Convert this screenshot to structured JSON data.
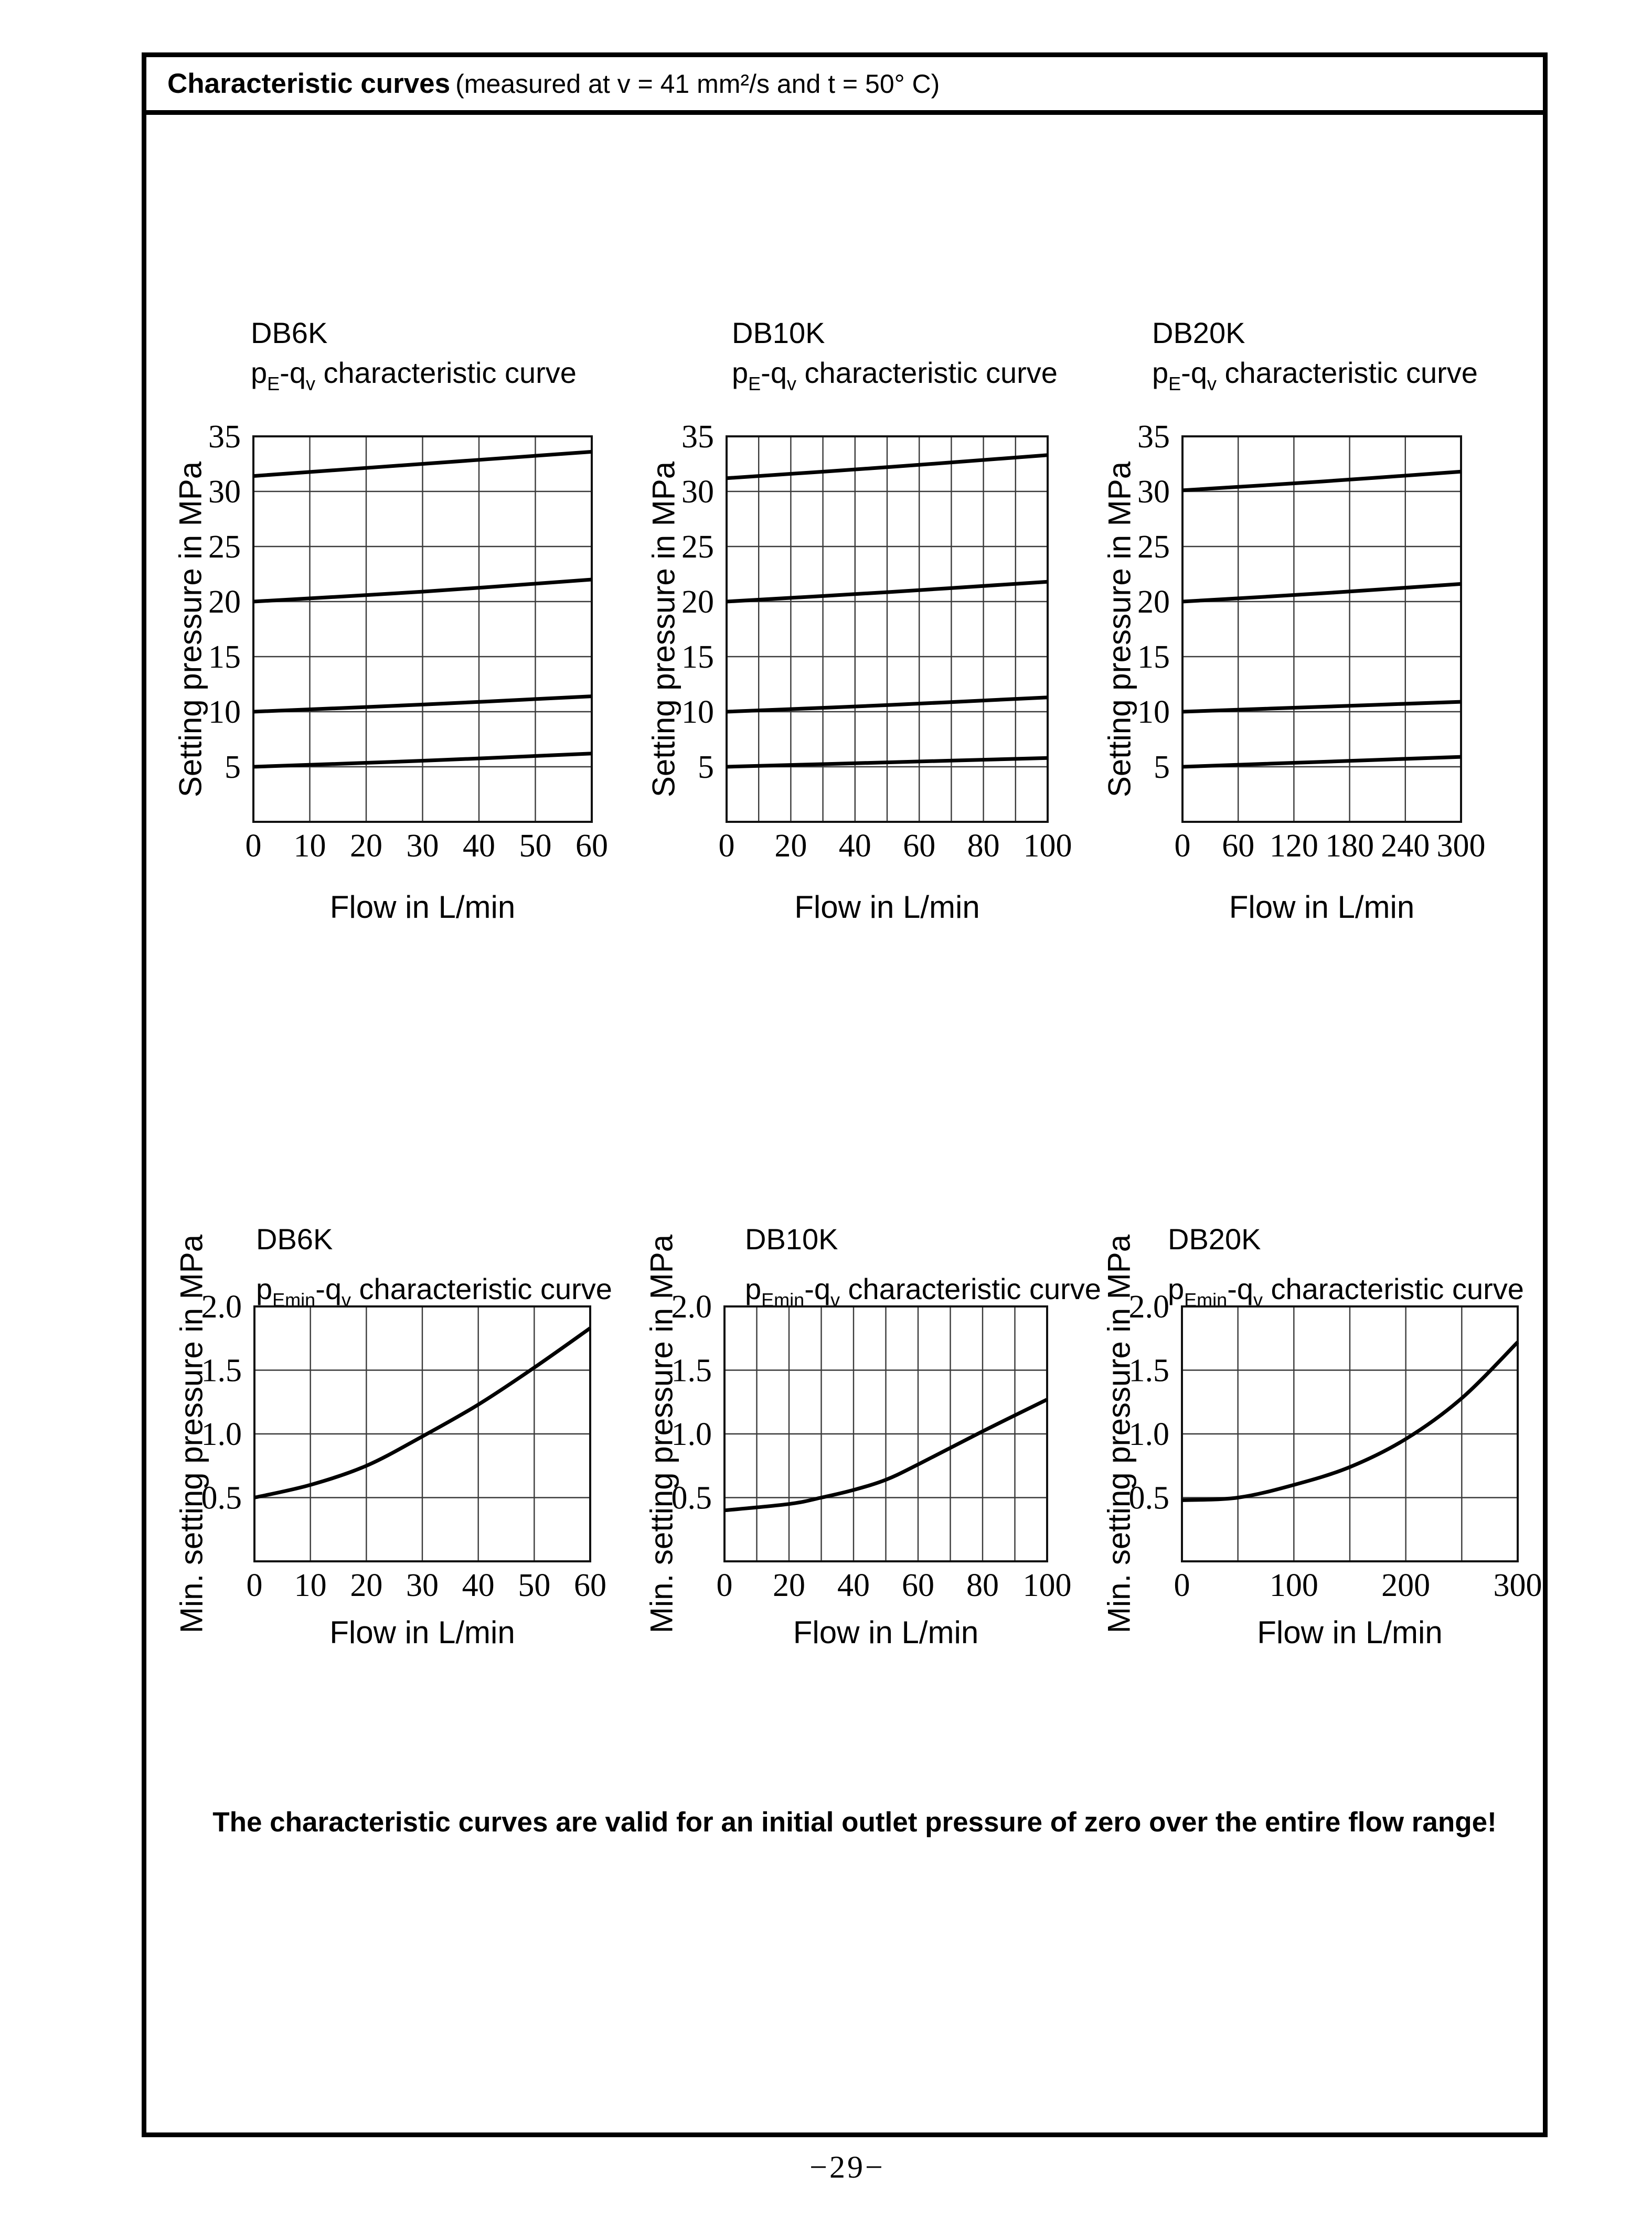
{
  "page": {
    "header_bold": "Characteristic curves",
    "header_rest": "(measured at v = 41 mm²/s and t = 50° C)",
    "footer_note": "The characteristic curves are valid for an initial outlet pressure of zero over the entire flow range!",
    "page_number": "−29−"
  },
  "chart_data": [
    {
      "type": "line",
      "model": "DB6K",
      "subtitle": [
        {
          "t": "p"
        },
        {
          "t": "E",
          "sub": true
        },
        {
          "t": "-q"
        },
        {
          "t": "v",
          "sub": true
        },
        {
          "t": " characteristic curve"
        }
      ],
      "xlabel": "Flow in L/min",
      "ylabel": "Setting pressure in MPa",
      "xlim": [
        0,
        60
      ],
      "ylim": [
        0,
        35
      ],
      "xgrid_step": 10,
      "ygrid": [
        5,
        10,
        15,
        20,
        25,
        30
      ],
      "xticks": [
        {
          "v": 0,
          "label": "0"
        },
        {
          "v": 10,
          "label": "10"
        },
        {
          "v": 20,
          "label": "20"
        },
        {
          "v": 30,
          "label": "30"
        },
        {
          "v": 40,
          "label": "40"
        },
        {
          "v": 50,
          "label": "50"
        },
        {
          "v": 60,
          "label": "60"
        }
      ],
      "yticks": [
        {
          "v": 35,
          "label": "35"
        },
        {
          "v": 30,
          "label": "30"
        },
        {
          "v": 25,
          "label": "25"
        },
        {
          "v": 20,
          "label": "20"
        },
        {
          "v": 15,
          "label": "15"
        },
        {
          "v": 10,
          "label": "10"
        },
        {
          "v": 5,
          "label": "5"
        }
      ],
      "series": [
        {
          "points": [
            [
              0,
              31.4
            ],
            [
              30,
              32.5
            ],
            [
              60,
              33.6
            ]
          ]
        },
        {
          "points": [
            [
              0,
              20.0
            ],
            [
              30,
              20.9
            ],
            [
              60,
              22.0
            ]
          ]
        },
        {
          "points": [
            [
              0,
              10.0
            ],
            [
              30,
              10.65
            ],
            [
              60,
              11.4
            ]
          ]
        },
        {
          "points": [
            [
              0,
              5.0
            ],
            [
              30,
              5.55
            ],
            [
              60,
              6.2
            ]
          ]
        }
      ]
    },
    {
      "type": "line",
      "model": "DB10K",
      "subtitle": [
        {
          "t": "p"
        },
        {
          "t": "E",
          "sub": true
        },
        {
          "t": "-q"
        },
        {
          "t": "v",
          "sub": true
        },
        {
          "t": " characteristic curve"
        }
      ],
      "xlabel": "Flow in L/min",
      "ylabel": "Setting pressure in MPa",
      "xlim": [
        0,
        100
      ],
      "ylim": [
        0,
        35
      ],
      "xgrid_step": 10,
      "ygrid": [
        5,
        10,
        15,
        20,
        25,
        30
      ],
      "xticks": [
        {
          "v": 0,
          "label": "0"
        },
        {
          "v": 20,
          "label": "20"
        },
        {
          "v": 40,
          "label": "40"
        },
        {
          "v": 60,
          "label": "60"
        },
        {
          "v": 80,
          "label": "80"
        },
        {
          "v": 100,
          "label": "100"
        }
      ],
      "yticks": [
        {
          "v": 35,
          "label": "35"
        },
        {
          "v": 30,
          "label": "30"
        },
        {
          "v": 25,
          "label": "25"
        },
        {
          "v": 20,
          "label": "20"
        },
        {
          "v": 15,
          "label": "15"
        },
        {
          "v": 10,
          "label": "10"
        },
        {
          "v": 5,
          "label": "5"
        }
      ],
      "series": [
        {
          "points": [
            [
              0,
              31.2
            ],
            [
              50,
              32.2
            ],
            [
              100,
              33.3
            ]
          ]
        },
        {
          "points": [
            [
              0,
              20.0
            ],
            [
              50,
              20.85
            ],
            [
              100,
              21.8
            ]
          ]
        },
        {
          "points": [
            [
              0,
              10.0
            ],
            [
              50,
              10.6
            ],
            [
              100,
              11.3
            ]
          ]
        },
        {
          "points": [
            [
              0,
              5.0
            ],
            [
              50,
              5.4
            ],
            [
              100,
              5.8
            ]
          ]
        }
      ]
    },
    {
      "type": "line",
      "model": "DB20K",
      "subtitle": [
        {
          "t": "p"
        },
        {
          "t": "E",
          "sub": true
        },
        {
          "t": "-q"
        },
        {
          "t": "v",
          "sub": true
        },
        {
          "t": " characteristic curve"
        }
      ],
      "xlabel": "Flow in L/min",
      "ylabel": "Setting pressure in MPa",
      "xlim": [
        0,
        300
      ],
      "ylim": [
        0,
        35
      ],
      "xgrid_step": 60,
      "ygrid": [
        5,
        10,
        15,
        20,
        25,
        30
      ],
      "xticks": [
        {
          "v": 0,
          "label": "0"
        },
        {
          "v": 60,
          "label": "60"
        },
        {
          "v": 120,
          "label": "120"
        },
        {
          "v": 180,
          "label": "180"
        },
        {
          "v": 240,
          "label": "240"
        },
        {
          "v": 300,
          "label": "300"
        }
      ],
      "yticks": [
        {
          "v": 35,
          "label": "35"
        },
        {
          "v": 30,
          "label": "30"
        },
        {
          "v": 25,
          "label": "25"
        },
        {
          "v": 20,
          "label": "20"
        },
        {
          "v": 15,
          "label": "15"
        },
        {
          "v": 10,
          "label": "10"
        },
        {
          "v": 5,
          "label": "5"
        }
      ],
      "series": [
        {
          "points": [
            [
              0,
              30.1
            ],
            [
              150,
              30.9
            ],
            [
              300,
              31.8
            ]
          ]
        },
        {
          "points": [
            [
              0,
              20.0
            ],
            [
              150,
              20.75
            ],
            [
              300,
              21.6
            ]
          ]
        },
        {
          "points": [
            [
              0,
              10.0
            ],
            [
              150,
              10.45
            ],
            [
              300,
              10.9
            ]
          ]
        },
        {
          "points": [
            [
              0,
              5.0
            ],
            [
              150,
              5.45
            ],
            [
              300,
              5.9
            ]
          ]
        }
      ]
    },
    {
      "type": "line",
      "model": "DB6K",
      "subtitle": [
        {
          "t": "p"
        },
        {
          "t": "Emin",
          "sub": true
        },
        {
          "t": "-q"
        },
        {
          "t": "v",
          "sub": true
        },
        {
          "t": " characteristic curve"
        }
      ],
      "xlabel": "Flow in L/min",
      "ylabel": "Min. setting pressure in MPa",
      "xlim": [
        0,
        60
      ],
      "ylim": [
        0,
        2
      ],
      "xgrid_step": 10,
      "ygrid": [
        0.5,
        1.0,
        1.5
      ],
      "xticks": [
        {
          "v": 0,
          "label": "0"
        },
        {
          "v": 10,
          "label": "10"
        },
        {
          "v": 20,
          "label": "20"
        },
        {
          "v": 30,
          "label": "30"
        },
        {
          "v": 40,
          "label": "40"
        },
        {
          "v": 50,
          "label": "50"
        },
        {
          "v": 60,
          "label": "60"
        }
      ],
      "yticks": [
        {
          "v": 2,
          "label": "2.0"
        },
        {
          "v": 1.5,
          "label": "1.5"
        },
        {
          "v": 1,
          "label": "1.0"
        },
        {
          "v": 0.5,
          "label": "0.5"
        }
      ],
      "series": [
        {
          "points": [
            [
              0,
              0.5
            ],
            [
              10,
              0.6
            ],
            [
              20,
              0.75
            ],
            [
              30,
              0.98
            ],
            [
              40,
              1.23
            ],
            [
              50,
              1.52
            ],
            [
              60,
              1.83
            ]
          ]
        }
      ]
    },
    {
      "type": "line",
      "model": "DB10K",
      "subtitle": [
        {
          "t": "p"
        },
        {
          "t": "Emin",
          "sub": true
        },
        {
          "t": "-q"
        },
        {
          "t": "v",
          "sub": true
        },
        {
          "t": " characteristic curve"
        }
      ],
      "xlabel": "Flow in L/min",
      "ylabel": "Min. setting pressure in MPa",
      "xlim": [
        0,
        100
      ],
      "ylim": [
        0,
        2
      ],
      "xgrid_step": 10,
      "ygrid": [
        0.5,
        1.0,
        1.5
      ],
      "xticks": [
        {
          "v": 0,
          "label": "0"
        },
        {
          "v": 20,
          "label": "20"
        },
        {
          "v": 40,
          "label": "40"
        },
        {
          "v": 60,
          "label": "60"
        },
        {
          "v": 80,
          "label": "80"
        },
        {
          "v": 100,
          "label": "100"
        }
      ],
      "yticks": [
        {
          "v": 2,
          "label": "2.0"
        },
        {
          "v": 1.5,
          "label": "1.5"
        },
        {
          "v": 1,
          "label": "1.0"
        },
        {
          "v": 0.5,
          "label": "0.5"
        }
      ],
      "series": [
        {
          "points": [
            [
              0,
              0.4
            ],
            [
              20,
              0.45
            ],
            [
              30,
              0.5
            ],
            [
              40,
              0.56
            ],
            [
              50,
              0.64
            ],
            [
              60,
              0.76
            ],
            [
              80,
              1.02
            ],
            [
              100,
              1.27
            ]
          ]
        }
      ]
    },
    {
      "type": "line",
      "model": "DB20K",
      "subtitle": [
        {
          "t": "p"
        },
        {
          "t": "Emin",
          "sub": true
        },
        {
          "t": "-q"
        },
        {
          "t": "v",
          "sub": true
        },
        {
          "t": " characteristic curve"
        }
      ],
      "xlabel": "Flow in L/min",
      "ylabel": "Min. setting pressure in MPa",
      "xlim": [
        0,
        300
      ],
      "ylim": [
        0,
        2
      ],
      "xgrid_step": 50,
      "ygrid": [
        0.5,
        1.0,
        1.5
      ],
      "xticks": [
        {
          "v": 0,
          "label": "0"
        },
        {
          "v": 100,
          "label": "100"
        },
        {
          "v": 200,
          "label": "200"
        },
        {
          "v": 300,
          "label": "300"
        }
      ],
      "yticks": [
        {
          "v": 2,
          "label": "2.0"
        },
        {
          "v": 1.5,
          "label": "1.5"
        },
        {
          "v": 1,
          "label": "1.0"
        },
        {
          "v": 0.5,
          "label": "0.5"
        }
      ],
      "series": [
        {
          "points": [
            [
              0,
              0.48
            ],
            [
              50,
              0.5
            ],
            [
              100,
              0.6
            ],
            [
              150,
              0.74
            ],
            [
              200,
              0.96
            ],
            [
              250,
              1.28
            ],
            [
              300,
              1.72
            ]
          ]
        }
      ]
    }
  ]
}
